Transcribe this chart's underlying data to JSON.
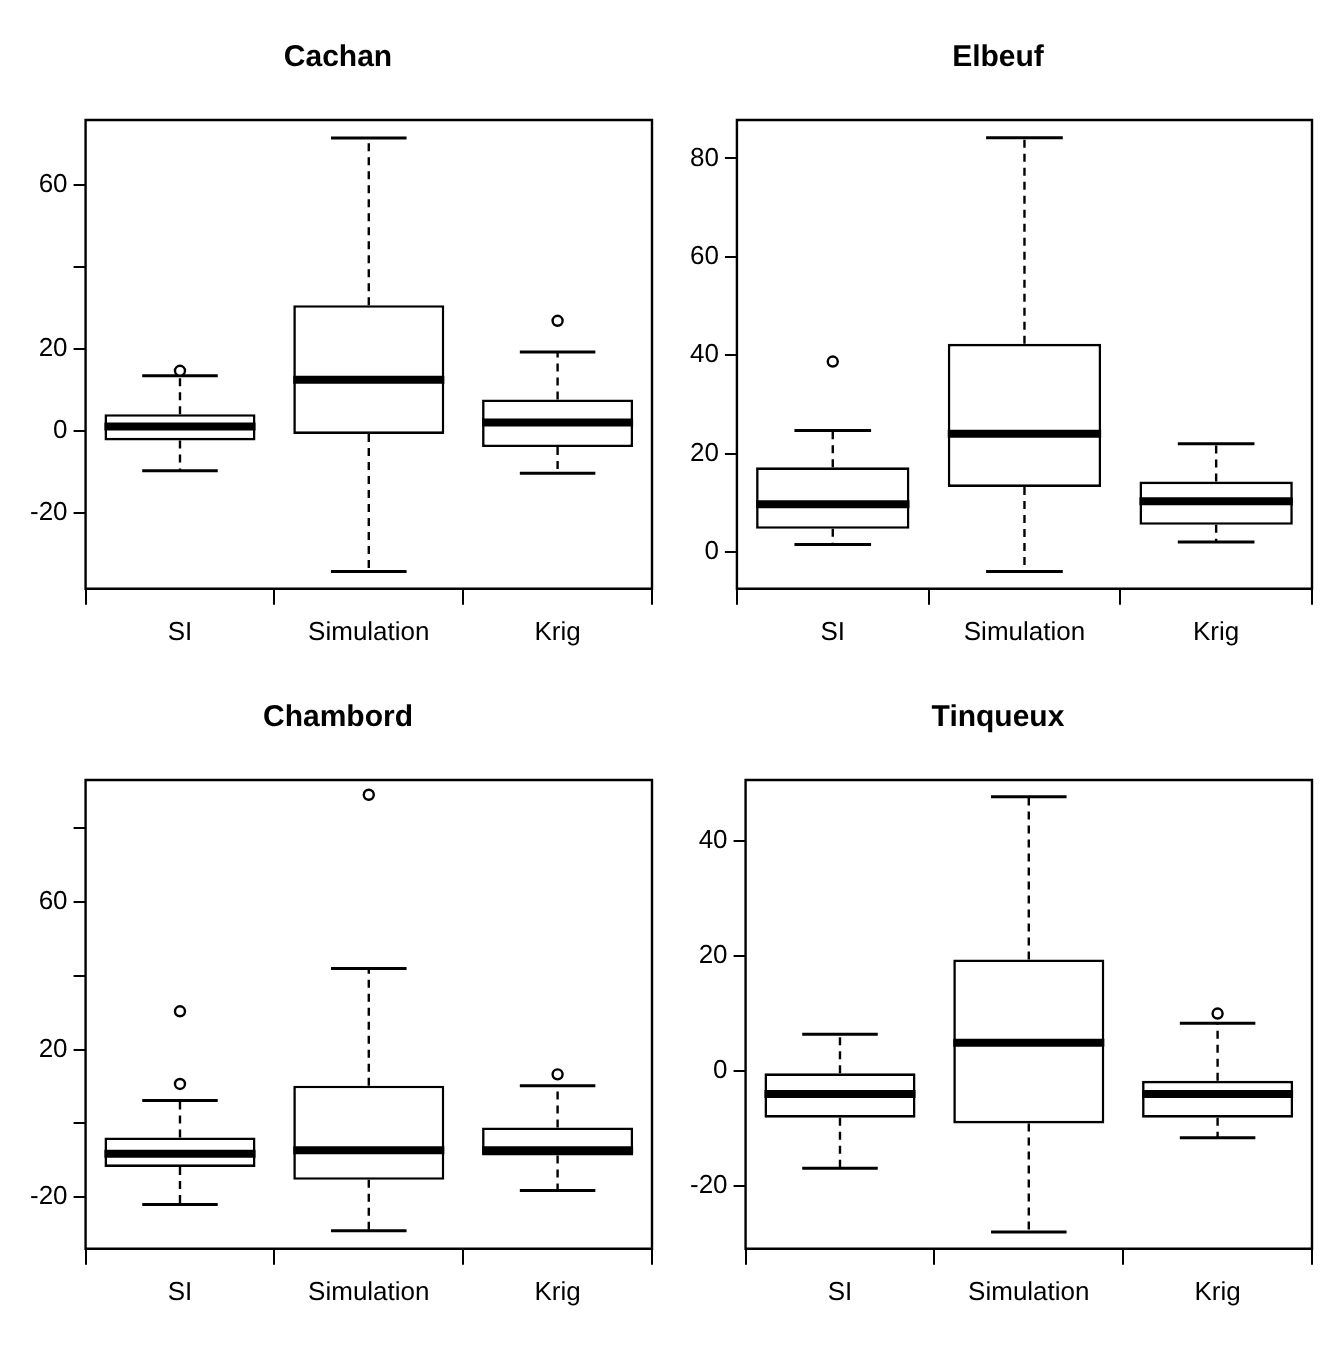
{
  "chart_data": [
    {
      "type": "box",
      "title": "Cachan",
      "categories": [
        "SI",
        "Simulation",
        "Krig"
      ],
      "ylim": [
        -38.6,
        75.8
      ],
      "yticks": [
        -20,
        0,
        20,
        {
          "value": 40,
          "label": null
        },
        60
      ],
      "boxes": [
        {
          "low": -9.8,
          "q1": -2.4,
          "median": 1,
          "q3": 4,
          "high": 13.4,
          "outliers": [
            14.6
          ]
        },
        {
          "low": -34.4,
          "q1": -0.8,
          "median": 12.4,
          "q3": 30.6,
          "high": 71.4
        },
        {
          "low": -10.4,
          "q1": -4,
          "median": 2,
          "q3": 7.6,
          "high": 19.2,
          "outliers": [
            26.8
          ]
        }
      ]
    },
    {
      "type": "box",
      "title": "Elbeuf",
      "categories": [
        "SI",
        "Simulation",
        "Krig"
      ],
      "ylim": [
        -7.5,
        87.8
      ],
      "yticks": [
        0,
        20,
        40,
        60,
        80
      ],
      "boxes": [
        {
          "low": 1.5,
          "q1": 4.7,
          "median": 9.7,
          "q3": 17.2,
          "high": 24.7,
          "outliers": [
            38.7
          ]
        },
        {
          "low": -4,
          "q1": 13.2,
          "median": 24,
          "q3": 42.3,
          "high": 84.2
        },
        {
          "low": 2,
          "q1": 5.5,
          "median": 10.3,
          "q3": 14.3,
          "high": 22
        }
      ]
    },
    {
      "type": "box",
      "title": "Chambord",
      "categories": [
        "SI",
        "Simulation",
        "Krig"
      ],
      "ylim": [
        -34,
        93.1
      ],
      "yticks": [
        -20,
        {
          "value": 0,
          "label": null
        },
        20,
        {
          "value": 40,
          "label": null
        },
        60,
        {
          "value": 80,
          "label": null
        }
      ],
      "boxes": [
        {
          "low": -22,
          "q1": -11.8,
          "median": -8.2,
          "q3": -3.8,
          "high": 6.2,
          "outliers": [
            10.7,
            30.4
          ]
        },
        {
          "low": -29.1,
          "q1": -15.3,
          "median": -7.3,
          "q3": 10.2,
          "high": 42,
          "outliers": [
            89.1
          ]
        },
        {
          "low": -18.2,
          "q1": -8.7,
          "median": -7.3,
          "q3": -1.1,
          "high": 10.2,
          "outliers": [
            13.3
          ]
        }
      ]
    },
    {
      "type": "box",
      "title": "Tinqueux",
      "categories": [
        "SI",
        "Simulation",
        "Krig"
      ],
      "ylim": [
        -30.9,
        50.6
      ],
      "yticks": [
        -20,
        0,
        20,
        40
      ],
      "boxes": [
        {
          "low": -16.9,
          "q1": -8.1,
          "median": -4,
          "q3": -0.4,
          "high": 6.4
        },
        {
          "low": -28,
          "q1": -9.1,
          "median": 4.9,
          "q3": 19.4,
          "high": 47.7
        },
        {
          "low": -11.6,
          "q1": -8.1,
          "median": -4,
          "q3": -1.7,
          "high": 8.3,
          "outliers": [
            10
          ]
        }
      ]
    }
  ]
}
